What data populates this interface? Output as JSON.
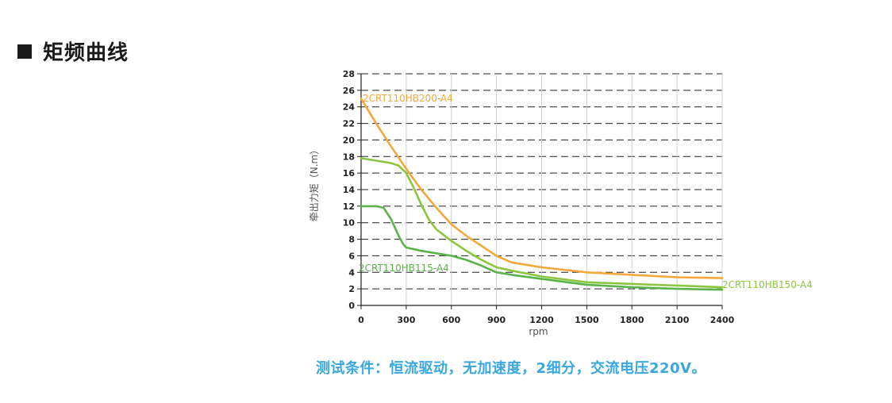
{
  "section": {
    "title": "矩频曲线"
  },
  "chart_data": {
    "type": "line",
    "xlabel": "rpm",
    "ylabel": "牵出力矩（N.m）",
    "xlim": [
      0,
      2400
    ],
    "ylim": [
      0,
      28
    ],
    "x_ticks": [
      0,
      300,
      600,
      900,
      1200,
      1500,
      1800,
      2100,
      2400
    ],
    "y_ticks": [
      0,
      2,
      4,
      6,
      8,
      10,
      12,
      14,
      16,
      18,
      20,
      22,
      24,
      26,
      28
    ],
    "grid": "horizontal dashed",
    "series": [
      {
        "name": "2CRT110HB200-A4",
        "color": "#f5a83a",
        "x": [
          0,
          100,
          200,
          300,
          400,
          500,
          600,
          700,
          800,
          900,
          1000,
          1200,
          1500,
          1800,
          2100,
          2400
        ],
        "y": [
          25.0,
          22.0,
          19.2,
          16.5,
          14.0,
          11.8,
          9.8,
          8.4,
          7.2,
          6.0,
          5.2,
          4.6,
          4.0,
          3.7,
          3.4,
          3.3
        ]
      },
      {
        "name": "2CRT110HB150-A4",
        "color": "#8cc63f",
        "x": [
          0,
          100,
          200,
          250,
          300,
          350,
          400,
          450,
          500,
          600,
          700,
          800,
          900,
          1000,
          1200,
          1500,
          1800,
          2100,
          2400
        ],
        "y": [
          17.8,
          17.5,
          17.2,
          16.9,
          16.0,
          14.2,
          12.2,
          10.4,
          9.2,
          7.8,
          6.6,
          5.5,
          4.6,
          4.2,
          3.5,
          2.8,
          2.6,
          2.4,
          2.2
        ]
      },
      {
        "name": "2CRT110HB115-A4",
        "color": "#5ab44a",
        "x": [
          0,
          100,
          150,
          200,
          250,
          280,
          300,
          400,
          500,
          600,
          700,
          800,
          900,
          1000,
          1200,
          1500,
          1800,
          2100,
          2400
        ],
        "y": [
          12.0,
          12.0,
          11.8,
          10.4,
          8.4,
          7.4,
          7.0,
          6.6,
          6.3,
          6.0,
          5.5,
          4.8,
          4.0,
          3.7,
          3.2,
          2.5,
          2.2,
          2.0,
          1.9
        ]
      }
    ]
  },
  "footer": {
    "test_conditions": "测试条件：恒流驱动，无加速度，2细分，交流电压220V。"
  }
}
